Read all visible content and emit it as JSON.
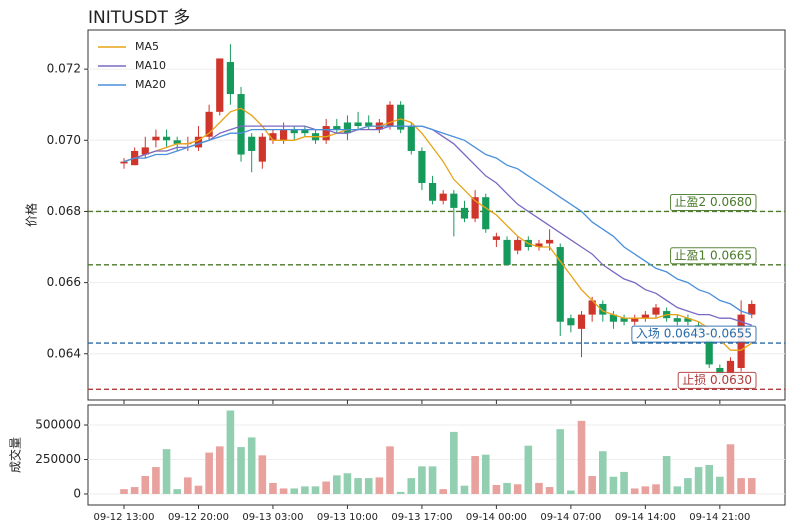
{
  "chart_data": {
    "type": "candlestick",
    "title": "INITUSDT  多",
    "ylabel": "价格",
    "volume_ylabel": "成交量",
    "categories": [
      "09-12 13:00",
      null,
      null,
      null,
      null,
      null,
      null,
      "09-12 20:00",
      null,
      null,
      null,
      null,
      null,
      null,
      "09-13 03:00",
      null,
      null,
      null,
      null,
      null,
      null,
      "09-13 10:00",
      null,
      null,
      null,
      null,
      null,
      null,
      "09-13 17:00",
      null,
      null,
      null,
      null,
      null,
      null,
      "09-14 00:00",
      null,
      null,
      null,
      null,
      null,
      null,
      "09-14 07:00",
      null,
      null,
      null,
      null,
      null,
      null,
      "09-14 14:00",
      null,
      null,
      null,
      null,
      null,
      null,
      "09-14 21:00",
      null,
      null,
      null
    ],
    "open": [
      0.06935,
      0.0693,
      0.0696,
      0.07,
      0.0701,
      0.07,
      0.0699,
      0.0698,
      0.0701,
      0.0708,
      0.0722,
      0.0713,
      0.0701,
      0.0694,
      0.07,
      0.07,
      0.0703,
      0.0703,
      0.0702,
      0.07,
      0.0704,
      0.0705,
      0.0705,
      0.0705,
      0.0703,
      0.0704,
      0.071,
      0.0704,
      0.0697,
      0.0688,
      0.0683,
      0.0685,
      0.0681,
      0.0678,
      0.0684,
      0.0672,
      0.0672,
      0.0669,
      0.0672,
      0.067,
      0.0671,
      0.067,
      0.065,
      0.0647,
      0.0651,
      0.0654,
      0.0651,
      0.065,
      0.0649,
      0.065,
      0.0651,
      0.0652,
      0.065,
      0.065,
      0.0648,
      0.0644,
      0.0636,
      0.0634,
      0.0636,
      0.0651
    ],
    "high": [
      0.0695,
      0.0698,
      0.0701,
      0.0703,
      0.0703,
      0.0701,
      0.0701,
      0.0704,
      0.071,
      0.0723,
      0.0727,
      0.0715,
      0.0702,
      0.0702,
      0.0703,
      0.0705,
      0.0704,
      0.0704,
      0.0703,
      0.0706,
      0.0706,
      0.0707,
      0.0708,
      0.0707,
      0.0706,
      0.0711,
      0.0711,
      0.0705,
      0.0698,
      0.069,
      0.0686,
      0.0686,
      0.0683,
      0.0686,
      0.0685,
      0.0674,
      0.0673,
      0.0673,
      0.0673,
      0.0672,
      0.0675,
      0.0671,
      0.0651,
      0.0652,
      0.0656,
      0.0655,
      0.0652,
      0.0651,
      0.0651,
      0.0652,
      0.0654,
      0.0653,
      0.0651,
      0.0651,
      0.0649,
      0.0645,
      0.0637,
      0.0639,
      0.0655,
      0.0655
    ],
    "low": [
      0.0692,
      0.0693,
      0.0695,
      0.0698,
      0.0698,
      0.0697,
      0.0697,
      0.0697,
      0.07,
      0.0707,
      0.071,
      0.0694,
      0.0691,
      0.0692,
      0.0699,
      0.0699,
      0.07,
      0.0701,
      0.0699,
      0.0699,
      0.0702,
      0.07,
      0.0703,
      0.0703,
      0.0702,
      0.0703,
      0.0702,
      0.0696,
      0.0686,
      0.0682,
      0.0682,
      0.0673,
      0.0677,
      0.0677,
      0.0674,
      0.067,
      0.0665,
      0.0668,
      0.0669,
      0.0669,
      0.0669,
      0.0645,
      0.0646,
      0.0639,
      0.0649,
      0.0649,
      0.0647,
      0.0648,
      0.0648,
      0.0649,
      0.065,
      0.0649,
      0.0648,
      0.0648,
      0.0645,
      0.0636,
      0.0633,
      0.0633,
      0.0635,
      0.065
    ],
    "close": [
      0.0694,
      0.0697,
      0.0698,
      0.0701,
      0.07,
      0.0699,
      0.06992,
      0.0701,
      0.0708,
      0.0723,
      0.0713,
      0.0696,
      0.0697,
      0.0701,
      0.0702,
      0.0703,
      0.0702,
      0.0702,
      0.07,
      0.0704,
      0.0703,
      0.0702,
      0.0704,
      0.0704,
      0.0705,
      0.071,
      0.0703,
      0.0697,
      0.0688,
      0.0683,
      0.0685,
      0.0681,
      0.0678,
      0.0684,
      0.0675,
      0.0673,
      0.0665,
      0.0672,
      0.067,
      0.0671,
      0.0672,
      0.0649,
      0.0648,
      0.0651,
      0.0655,
      0.0651,
      0.0649,
      0.0649,
      0.065,
      0.0651,
      0.0653,
      0.065,
      0.0649,
      0.0649,
      0.0646,
      0.0637,
      0.0634,
      0.0638,
      0.0651,
      0.0654
    ],
    "up_color": "#d0352b",
    "down_color": "#159a5c",
    "up_volume_color": "#e8a19c",
    "down_volume_color": "#92cfb1",
    "volume": [
      35000,
      50000,
      130000,
      195000,
      325000,
      35000,
      120000,
      60000,
      300000,
      345000,
      605000,
      340000,
      410000,
      280000,
      80000,
      40000,
      40000,
      55000,
      55000,
      90000,
      135000,
      150000,
      115000,
      115000,
      120000,
      345000,
      15000,
      115000,
      200000,
      200000,
      35000,
      450000,
      60000,
      275000,
      285000,
      65000,
      80000,
      70000,
      350000,
      80000,
      50000,
      470000,
      25000,
      530000,
      130000,
      310000,
      125000,
      160000,
      40000,
      55000,
      70000,
      275000,
      55000,
      115000,
      195000,
      210000,
      125000,
      360000,
      115000,
      115000
    ],
    "series": [
      {
        "name": "MA5",
        "color": "#e8a317",
        "values": [
          0.0694,
          0.0695,
          0.0696,
          0.0697,
          0.0698,
          0.0699,
          0.0699,
          0.07,
          0.0702,
          0.0705,
          0.0708,
          0.0709,
          0.0707,
          0.0704,
          0.07,
          0.07,
          0.07,
          0.0701,
          0.0701,
          0.0701,
          0.0702,
          0.0703,
          0.0703,
          0.0704,
          0.0704,
          0.0705,
          0.0706,
          0.0705,
          0.0702,
          0.0698,
          0.0694,
          0.0689,
          0.0686,
          0.0683,
          0.0681,
          0.0679,
          0.0676,
          0.0673,
          0.0671,
          0.067,
          0.067,
          0.0666,
          0.0662,
          0.0658,
          0.0655,
          0.0652,
          0.0651,
          0.065,
          0.065,
          0.065,
          0.065,
          0.0651,
          0.0651,
          0.065,
          0.0649,
          0.0647,
          0.0644,
          0.0641,
          0.0641,
          0.0643
        ]
      },
      {
        "name": "MA10",
        "color": "#7b68c4",
        "values": [
          0.0694,
          0.0695,
          0.0696,
          0.0697,
          0.0697,
          0.0698,
          0.0698,
          0.0699,
          0.07,
          0.0702,
          0.0703,
          0.0704,
          0.0704,
          0.0704,
          0.0704,
          0.0704,
          0.0704,
          0.0704,
          0.0703,
          0.0703,
          0.0702,
          0.0702,
          0.0703,
          0.0703,
          0.0703,
          0.0704,
          0.0704,
          0.0704,
          0.0704,
          0.0703,
          0.0701,
          0.0699,
          0.0696,
          0.0693,
          0.069,
          0.0688,
          0.0685,
          0.0682,
          0.068,
          0.0678,
          0.0676,
          0.0674,
          0.0672,
          0.067,
          0.0668,
          0.0665,
          0.0663,
          0.0661,
          0.066,
          0.0658,
          0.0657,
          0.0655,
          0.0653,
          0.0652,
          0.0651,
          0.0651,
          0.065,
          0.065,
          0.0649,
          0.0648
        ]
      },
      {
        "name": "MA20",
        "color": "#4a90d9",
        "values": [
          0.0694,
          0.0695,
          0.0695,
          0.0696,
          0.0696,
          0.0697,
          0.0698,
          0.0699,
          0.07,
          0.0701,
          0.0702,
          0.0702,
          0.0703,
          0.0703,
          0.0703,
          0.0703,
          0.0703,
          0.0703,
          0.0703,
          0.0703,
          0.0703,
          0.0703,
          0.0703,
          0.0704,
          0.0704,
          0.0704,
          0.0704,
          0.0704,
          0.0704,
          0.0703,
          0.0702,
          0.0701,
          0.07,
          0.0698,
          0.0696,
          0.0695,
          0.0693,
          0.0692,
          0.069,
          0.0688,
          0.0686,
          0.0684,
          0.0682,
          0.068,
          0.0677,
          0.0675,
          0.0673,
          0.067,
          0.0668,
          0.0666,
          0.0664,
          0.0663,
          0.0661,
          0.066,
          0.0658,
          0.0657,
          0.0655,
          0.0654,
          0.0652,
          0.0651
        ]
      }
    ],
    "levels": [
      {
        "label": "止盈2 0.0680",
        "value": 0.068,
        "color": "#4a7a2a"
      },
      {
        "label": "止盈1 0.0665",
        "value": 0.0665,
        "color": "#4a7a2a"
      },
      {
        "label": "入场 0.0643-0.0655",
        "value": 0.0643,
        "color": "#2a6aa8"
      },
      {
        "label": "止损 0.0630",
        "value": 0.063,
        "color": "#b03a3a"
      }
    ],
    "ylim": [
      0.0627,
      0.0731
    ],
    "yticks": [
      0.064,
      0.066,
      0.068,
      {
        "value": 0.07,
        "label": "0.070"
      },
      0.072
    ],
    "volume_ylim": [
      -80000,
      645000
    ],
    "volume_yticks": [
      0,
      250000,
      500000
    ],
    "grid": true,
    "legend": "upper left"
  }
}
